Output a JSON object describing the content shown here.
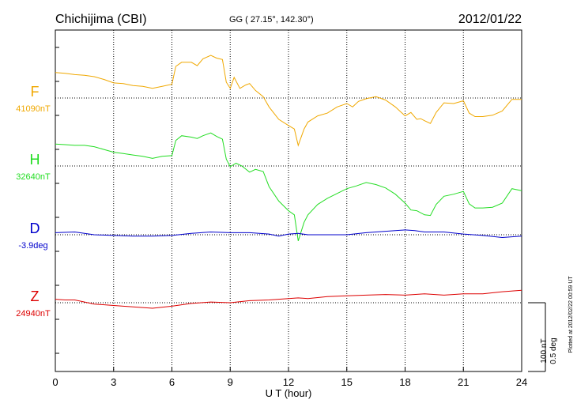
{
  "header": {
    "station": "Chichijima (CBI)",
    "coords": "GG ( 27.15°, 142.30°)",
    "date": "2012/01/22"
  },
  "xlabel": "U T (hour)",
  "plotted_note": "Plotted at 2012/02/22 00:59 UT",
  "scale": {
    "nT": "100 nT",
    "deg": "0.5 deg"
  },
  "chart_data": {
    "type": "line",
    "title": "Chichijima (CBI)",
    "xlabel": "U T (hour)",
    "ylabel": "",
    "xlim": [
      0,
      24
    ],
    "x_ticks": [
      0,
      3,
      6,
      9,
      12,
      15,
      18,
      21,
      24
    ],
    "grid": true,
    "scale_units_per_100nT": "100 nT / 0.5 deg",
    "series": [
      {
        "name": "F",
        "baseline_label": "41090nT",
        "color": "#f0a800",
        "offset_nT": 100,
        "points": [
          [
            0,
            137
          ],
          [
            0.5,
            136
          ],
          [
            1,
            134
          ],
          [
            1.5,
            133
          ],
          [
            2,
            131
          ],
          [
            2.5,
            127
          ],
          [
            3,
            122
          ],
          [
            3.5,
            121
          ],
          [
            4,
            118
          ],
          [
            4.5,
            117
          ],
          [
            5,
            114
          ],
          [
            5.5,
            117
          ],
          [
            6,
            120
          ],
          [
            6.2,
            146
          ],
          [
            6.5,
            152
          ],
          [
            7,
            152
          ],
          [
            7.3,
            147
          ],
          [
            7.6,
            157
          ],
          [
            8,
            162
          ],
          [
            8.3,
            158
          ],
          [
            8.6,
            156
          ],
          [
            8.8,
            123
          ],
          [
            9,
            114
          ],
          [
            9.2,
            130
          ],
          [
            9.5,
            114
          ],
          [
            9.8,
            119
          ],
          [
            10,
            121
          ],
          [
            10.3,
            111
          ],
          [
            10.7,
            102
          ],
          [
            11,
            87
          ],
          [
            11.5,
            69
          ],
          [
            12,
            60
          ],
          [
            12.3,
            55
          ],
          [
            12.5,
            31
          ],
          [
            12.8,
            55
          ],
          [
            13,
            65
          ],
          [
            13.5,
            74
          ],
          [
            14,
            78
          ],
          [
            14.5,
            87
          ],
          [
            15,
            92
          ],
          [
            15.3,
            87
          ],
          [
            15.6,
            95
          ],
          [
            16,
            99
          ],
          [
            16.5,
            102
          ],
          [
            17,
            97
          ],
          [
            17.5,
            87
          ],
          [
            18,
            74
          ],
          [
            18.3,
            79
          ],
          [
            18.6,
            69
          ],
          [
            18.8,
            70
          ],
          [
            19,
            67
          ],
          [
            19.3,
            63
          ],
          [
            19.6,
            79
          ],
          [
            20,
            93
          ],
          [
            20.5,
            92
          ],
          [
            21,
            96
          ],
          [
            21.3,
            78
          ],
          [
            21.6,
            73
          ],
          [
            22,
            73
          ],
          [
            22.5,
            75
          ],
          [
            23,
            81
          ],
          [
            23.5,
            98
          ],
          [
            24,
            98
          ]
        ]
      },
      {
        "name": "H",
        "baseline_label": "32640nT",
        "color": "#22dd22",
        "offset_nT": 100,
        "points": [
          [
            0,
            132
          ],
          [
            0.5,
            131
          ],
          [
            1,
            130
          ],
          [
            1.5,
            130
          ],
          [
            2,
            128
          ],
          [
            2.5,
            124
          ],
          [
            3,
            120
          ],
          [
            3.5,
            118
          ],
          [
            4,
            116
          ],
          [
            4.5,
            114
          ],
          [
            5,
            111
          ],
          [
            5.5,
            114
          ],
          [
            6,
            115
          ],
          [
            6.2,
            137
          ],
          [
            6.5,
            144
          ],
          [
            7,
            142
          ],
          [
            7.3,
            140
          ],
          [
            7.6,
            144
          ],
          [
            8,
            148
          ],
          [
            8.3,
            143
          ],
          [
            8.6,
            139
          ],
          [
            8.8,
            110
          ],
          [
            9,
            99
          ],
          [
            9.3,
            104
          ],
          [
            9.6,
            100
          ],
          [
            10,
            91
          ],
          [
            10.3,
            95
          ],
          [
            10.7,
            92
          ],
          [
            11,
            70
          ],
          [
            11.5,
            49
          ],
          [
            12,
            35
          ],
          [
            12.3,
            29
          ],
          [
            12.5,
            -9
          ],
          [
            12.8,
            18
          ],
          [
            13,
            29
          ],
          [
            13.5,
            44
          ],
          [
            14,
            53
          ],
          [
            14.5,
            60
          ],
          [
            15,
            67
          ],
          [
            15.5,
            71
          ],
          [
            16,
            76
          ],
          [
            16.5,
            73
          ],
          [
            17,
            68
          ],
          [
            17.5,
            59
          ],
          [
            18,
            46
          ],
          [
            18.3,
            36
          ],
          [
            18.6,
            35
          ],
          [
            19,
            29
          ],
          [
            19.3,
            28
          ],
          [
            19.6,
            44
          ],
          [
            20,
            56
          ],
          [
            20.5,
            59
          ],
          [
            21,
            63
          ],
          [
            21.3,
            45
          ],
          [
            21.6,
            39
          ],
          [
            22,
            39
          ],
          [
            22.5,
            40
          ],
          [
            23,
            46
          ],
          [
            23.5,
            67
          ],
          [
            24,
            64
          ]
        ]
      },
      {
        "name": "D",
        "baseline_label": "-3.9deg",
        "color": "#0000cc",
        "offset_nT": 100,
        "points": [
          [
            0,
            103
          ],
          [
            1,
            104
          ],
          [
            2,
            100
          ],
          [
            3,
            99
          ],
          [
            4,
            98
          ],
          [
            5,
            98
          ],
          [
            6,
            99
          ],
          [
            7,
            102
          ],
          [
            8,
            104
          ],
          [
            9,
            103
          ],
          [
            10,
            103
          ],
          [
            11,
            101
          ],
          [
            11.5,
            98
          ],
          [
            12,
            101
          ],
          [
            12.5,
            102
          ],
          [
            13,
            100
          ],
          [
            14,
            100
          ],
          [
            15,
            100
          ],
          [
            16,
            103
          ],
          [
            17,
            105
          ],
          [
            18,
            107
          ],
          [
            18.5,
            106
          ],
          [
            19,
            104
          ],
          [
            20,
            104
          ],
          [
            21,
            101
          ],
          [
            22,
            99
          ],
          [
            23,
            96
          ],
          [
            24,
            98
          ]
        ]
      },
      {
        "name": "Z",
        "baseline_label": "24940nT",
        "color": "#dd0000",
        "offset_nT": 100,
        "points": [
          [
            0,
            105
          ],
          [
            0.5,
            104
          ],
          [
            1,
            104
          ],
          [
            2,
            98
          ],
          [
            3,
            96
          ],
          [
            4,
            94
          ],
          [
            5,
            92
          ],
          [
            6,
            95
          ],
          [
            7,
            99
          ],
          [
            8,
            101
          ],
          [
            9,
            100
          ],
          [
            10,
            103
          ],
          [
            11,
            104
          ],
          [
            12,
            106
          ],
          [
            12.5,
            107
          ],
          [
            13,
            106
          ],
          [
            14,
            109
          ],
          [
            15,
            110
          ],
          [
            16,
            111
          ],
          [
            17,
            112
          ],
          [
            18,
            111
          ],
          [
            19,
            113
          ],
          [
            20,
            111
          ],
          [
            21,
            113
          ],
          [
            22,
            113
          ],
          [
            23,
            116
          ],
          [
            24,
            118
          ]
        ]
      }
    ]
  }
}
